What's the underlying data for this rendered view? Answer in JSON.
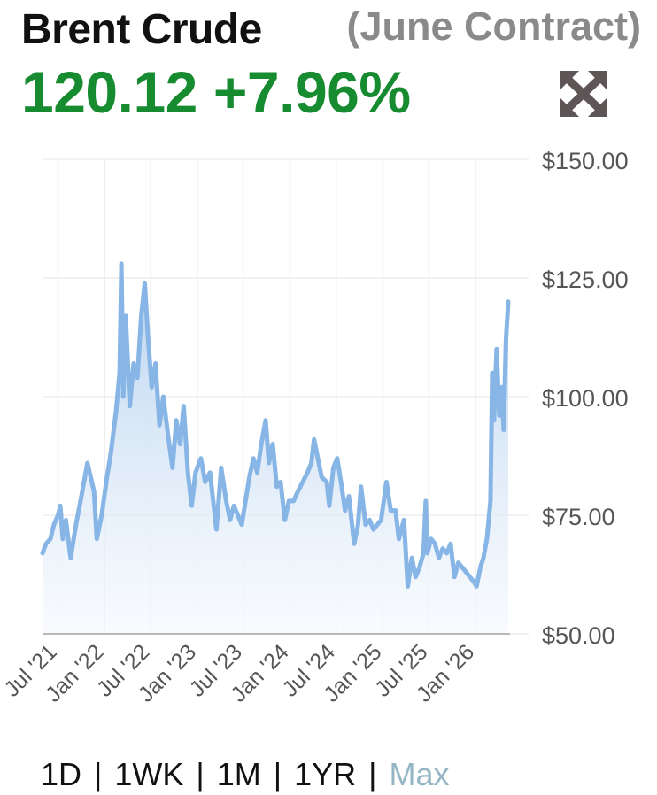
{
  "header": {
    "title": "Brent Crude",
    "contract": "(June Contract)",
    "price": "120.12",
    "change": "+7.96%"
  },
  "icons": {
    "expand": "expand-arrows-icon"
  },
  "colors": {
    "price_up": "#168b2f",
    "line": "#86b5e6",
    "area_top": "#b3d0ee",
    "area_bottom": "#f4f8fd",
    "active_range": "#94b6c4"
  },
  "ranges": [
    {
      "label": "1D",
      "active": false
    },
    {
      "label": "1WK",
      "active": false
    },
    {
      "label": "1M",
      "active": false
    },
    {
      "label": "1YR",
      "active": false
    },
    {
      "label": "Max",
      "active": true
    }
  ],
  "chart_data": {
    "type": "area",
    "title": "",
    "xlabel": "",
    "ylabel": "",
    "ylim": [
      50,
      150
    ],
    "y_ticks": [
      150,
      125,
      100,
      75,
      50
    ],
    "y_tick_labels": [
      "$150.00",
      "$125.00",
      "$100.00",
      "$75.00",
      "$50.00"
    ],
    "x_ticks": [
      "2021-07-01",
      "2022-01-01",
      "2022-07-01",
      "2023-01-01",
      "2023-07-01",
      "2024-01-01",
      "2024-07-01",
      "2025-01-01",
      "2025-07-01",
      "2026-01-01"
    ],
    "x_tick_labels": [
      "Jul '21",
      "Jan '22",
      "Jul '22",
      "Jan '23",
      "Jul '23",
      "Jan '24",
      "Jul '24",
      "Jan '25",
      "Jul '25",
      "Jan '26"
    ],
    "xlim": [
      "2021-05-01",
      "2026-05-10"
    ],
    "grid": true,
    "legend": "none",
    "series": [
      {
        "points": [
          [
            "2021-05-01",
            67
          ],
          [
            "2021-05-15",
            69
          ],
          [
            "2021-06-01",
            70
          ],
          [
            "2021-06-15",
            73
          ],
          [
            "2021-07-01",
            75
          ],
          [
            "2021-07-10",
            77
          ],
          [
            "2021-07-20",
            70
          ],
          [
            "2021-08-01",
            74
          ],
          [
            "2021-08-20",
            66
          ],
          [
            "2021-09-10",
            73
          ],
          [
            "2021-10-01",
            79
          ],
          [
            "2021-10-25",
            86
          ],
          [
            "2021-11-20",
            80
          ],
          [
            "2021-12-01",
            70
          ],
          [
            "2021-12-20",
            75
          ],
          [
            "2022-01-10",
            83
          ],
          [
            "2022-01-25",
            88
          ],
          [
            "2022-02-15",
            97
          ],
          [
            "2022-03-01",
            105
          ],
          [
            "2022-03-08",
            128
          ],
          [
            "2022-03-15",
            100
          ],
          [
            "2022-03-25",
            117
          ],
          [
            "2022-04-10",
            98
          ],
          [
            "2022-04-25",
            107
          ],
          [
            "2022-05-10",
            104
          ],
          [
            "2022-05-25",
            117
          ],
          [
            "2022-06-08",
            124
          ],
          [
            "2022-06-20",
            113
          ],
          [
            "2022-07-05",
            102
          ],
          [
            "2022-07-20",
            107
          ],
          [
            "2022-08-05",
            94
          ],
          [
            "2022-08-20",
            100
          ],
          [
            "2022-09-05",
            93
          ],
          [
            "2022-09-25",
            85
          ],
          [
            "2022-10-10",
            95
          ],
          [
            "2022-10-25",
            90
          ],
          [
            "2022-11-08",
            98
          ],
          [
            "2022-11-25",
            84
          ],
          [
            "2022-12-10",
            77
          ],
          [
            "2022-12-25",
            84
          ],
          [
            "2023-01-15",
            87
          ],
          [
            "2023-02-01",
            82
          ],
          [
            "2023-02-20",
            84
          ],
          [
            "2023-03-17",
            72
          ],
          [
            "2023-04-05",
            85
          ],
          [
            "2023-04-25",
            78
          ],
          [
            "2023-05-10",
            74
          ],
          [
            "2023-05-25",
            77
          ],
          [
            "2023-06-10",
            75
          ],
          [
            "2023-06-25",
            73
          ],
          [
            "2023-07-10",
            78
          ],
          [
            "2023-07-25",
            83
          ],
          [
            "2023-08-10",
            87
          ],
          [
            "2023-08-25",
            84
          ],
          [
            "2023-09-10",
            90
          ],
          [
            "2023-09-27",
            95
          ],
          [
            "2023-10-10",
            86
          ],
          [
            "2023-10-25",
            90
          ],
          [
            "2023-11-10",
            81
          ],
          [
            "2023-11-25",
            82
          ],
          [
            "2023-12-12",
            74
          ],
          [
            "2023-12-28",
            78
          ],
          [
            "2024-01-15",
            78
          ],
          [
            "2024-02-01",
            80
          ],
          [
            "2024-02-20",
            82
          ],
          [
            "2024-03-10",
            84
          ],
          [
            "2024-03-25",
            86
          ],
          [
            "2024-04-05",
            91
          ],
          [
            "2024-04-20",
            87
          ],
          [
            "2024-05-05",
            83
          ],
          [
            "2024-05-25",
            82
          ],
          [
            "2024-06-04",
            77
          ],
          [
            "2024-06-20",
            85
          ],
          [
            "2024-07-05",
            87
          ],
          [
            "2024-07-20",
            82
          ],
          [
            "2024-08-05",
            76
          ],
          [
            "2024-08-20",
            79
          ],
          [
            "2024-09-10",
            69
          ],
          [
            "2024-09-25",
            73
          ],
          [
            "2024-10-07",
            81
          ],
          [
            "2024-10-25",
            73
          ],
          [
            "2024-11-10",
            74
          ],
          [
            "2024-11-25",
            72
          ],
          [
            "2024-12-10",
            73
          ],
          [
            "2024-12-25",
            74
          ],
          [
            "2025-01-15",
            82
          ],
          [
            "2025-02-01",
            76
          ],
          [
            "2025-02-20",
            76
          ],
          [
            "2025-03-05",
            70
          ],
          [
            "2025-03-25",
            74
          ],
          [
            "2025-04-09",
            60
          ],
          [
            "2025-04-25",
            66
          ],
          [
            "2025-05-10",
            62
          ],
          [
            "2025-05-25",
            64
          ],
          [
            "2025-06-10",
            67
          ],
          [
            "2025-06-19",
            78
          ],
          [
            "2025-06-25",
            67
          ],
          [
            "2025-07-10",
            70
          ],
          [
            "2025-07-25",
            69
          ],
          [
            "2025-08-10",
            66
          ],
          [
            "2025-08-25",
            68
          ],
          [
            "2025-09-10",
            67
          ],
          [
            "2025-09-25",
            69
          ],
          [
            "2025-10-10",
            62
          ],
          [
            "2025-10-25",
            65
          ],
          [
            "2025-11-10",
            64
          ],
          [
            "2025-11-25",
            63
          ],
          [
            "2025-12-10",
            62
          ],
          [
            "2025-12-25",
            61
          ],
          [
            "2026-01-05",
            60
          ],
          [
            "2026-01-20",
            64
          ],
          [
            "2026-02-01",
            66
          ],
          [
            "2026-02-15",
            70
          ],
          [
            "2026-03-01",
            78
          ],
          [
            "2026-03-08",
            105
          ],
          [
            "2026-03-15",
            95
          ],
          [
            "2026-03-25",
            110
          ],
          [
            "2026-04-05",
            96
          ],
          [
            "2026-04-15",
            102
          ],
          [
            "2026-04-22",
            93
          ],
          [
            "2026-05-01",
            112
          ],
          [
            "2026-05-10",
            120
          ]
        ]
      }
    ]
  },
  "footer": {
    "separator": "|"
  }
}
